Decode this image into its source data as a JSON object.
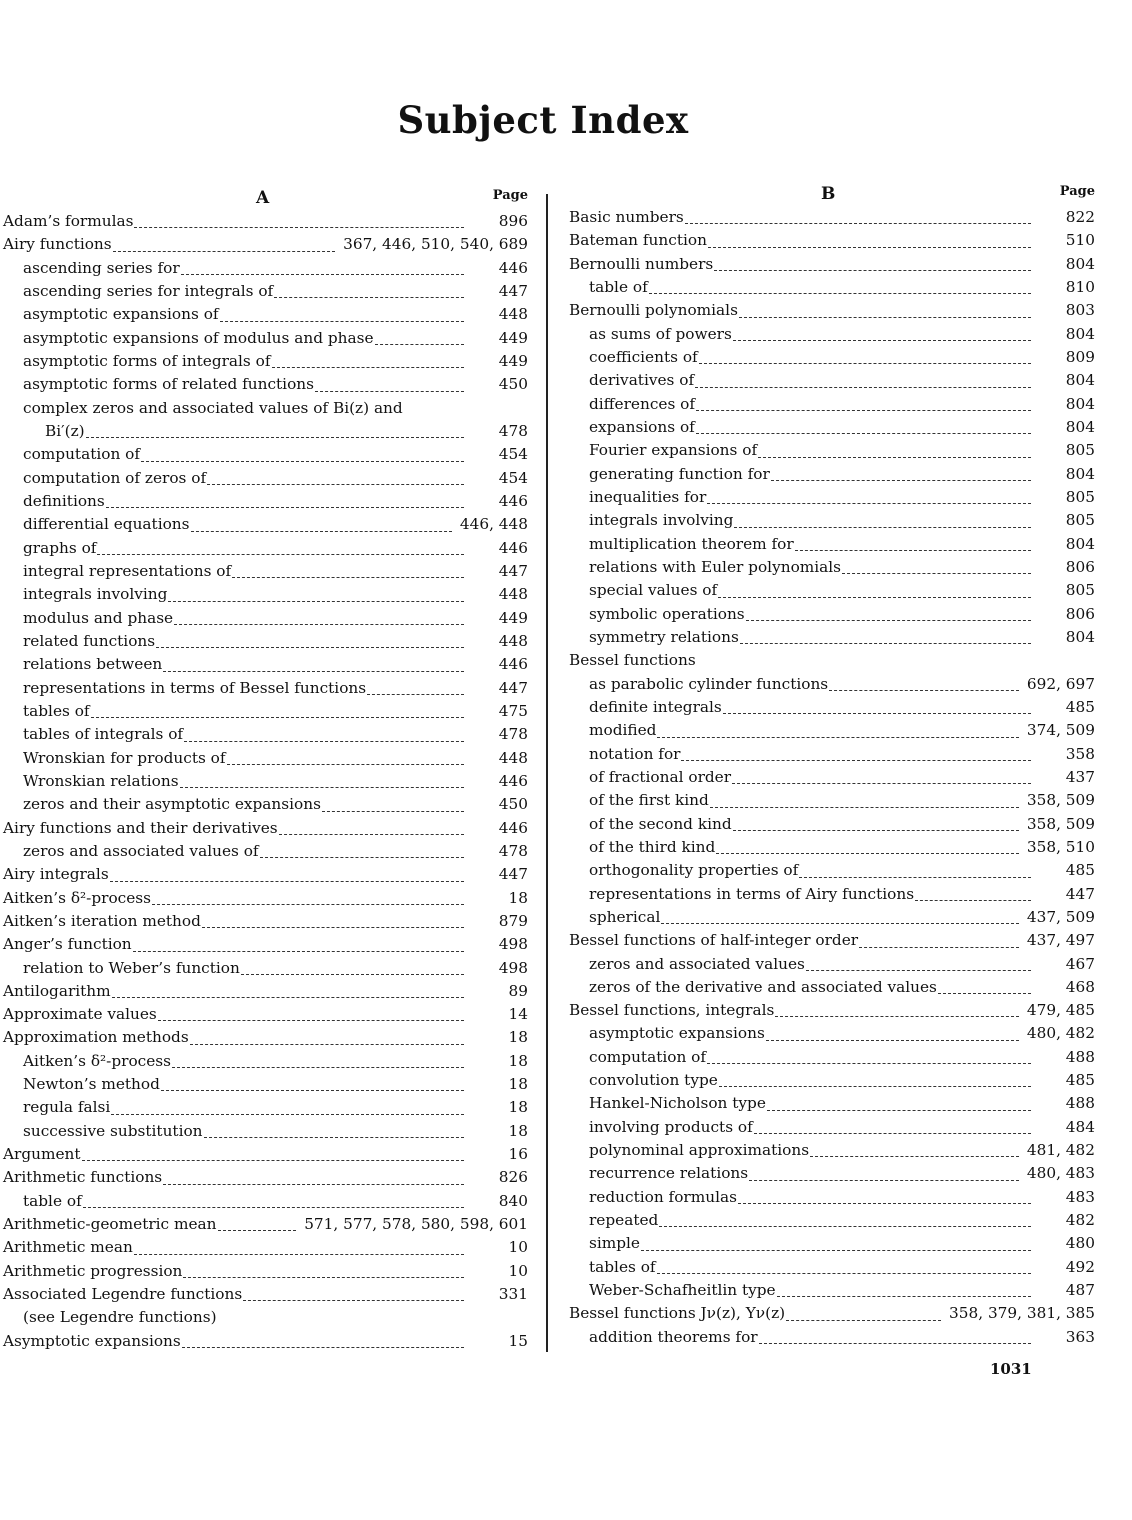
{
  "title": "Subject Index",
  "page_number": "1031",
  "columns": [
    {
      "letter": "A",
      "page_header": "Page",
      "entries": [
        {
          "text": "Adam’s formulas",
          "pages": "896",
          "level": 0
        },
        {
          "text": "Airy functions",
          "pages": "367, 446, 510, 540, 689",
          "level": 0
        },
        {
          "text": "ascending series for",
          "pages": "446",
          "level": 1
        },
        {
          "text": "ascending series for integrals of",
          "pages": "447",
          "level": 1
        },
        {
          "text": "asymptotic expansions of",
          "pages": "448",
          "level": 1
        },
        {
          "text": "asymptotic expansions of modulus and phase",
          "pages": "449",
          "level": 1
        },
        {
          "text": "asymptotic forms of integrals of",
          "pages": "449",
          "level": 1
        },
        {
          "text": "asymptotic forms of related functions",
          "pages": "450",
          "level": 1
        },
        {
          "text": "complex zeros and associated values of Bi(z) and",
          "pages": "",
          "level": 1
        },
        {
          "text": "Bi′(z)",
          "pages": "478",
          "level": 2
        },
        {
          "text": "computation of",
          "pages": "454",
          "level": 1
        },
        {
          "text": "computation of zeros of",
          "pages": "454",
          "level": 1
        },
        {
          "text": "definitions",
          "pages": "446",
          "level": 1
        },
        {
          "text": "differential equations",
          "pages": "446, 448",
          "level": 1
        },
        {
          "text": "graphs of",
          "pages": "446",
          "level": 1
        },
        {
          "text": "integral representations of",
          "pages": "447",
          "level": 1
        },
        {
          "text": "integrals involving",
          "pages": "448",
          "level": 1
        },
        {
          "text": "modulus and phase",
          "pages": "449",
          "level": 1
        },
        {
          "text": "related functions",
          "pages": "448",
          "level": 1
        },
        {
          "text": "relations between",
          "pages": "446",
          "level": 1
        },
        {
          "text": "representations in terms of Bessel functions",
          "pages": "447",
          "level": 1
        },
        {
          "text": "tables of",
          "pages": "475",
          "level": 1
        },
        {
          "text": "tables of integrals of",
          "pages": "478",
          "level": 1
        },
        {
          "text": "Wronskian for products of",
          "pages": "448",
          "level": 1
        },
        {
          "text": "Wronskian relations",
          "pages": "446",
          "level": 1
        },
        {
          "text": "zeros and their asymptotic expansions",
          "pages": "450",
          "level": 1
        },
        {
          "text": "Airy functions and their derivatives",
          "pages": "446",
          "level": 0
        },
        {
          "text": "zeros and associated values of",
          "pages": "478",
          "level": 1
        },
        {
          "text": "Airy integrals",
          "pages": "447",
          "level": 0
        },
        {
          "text": "Aitken’s δ²-process",
          "pages": "18",
          "level": 0
        },
        {
          "text": "Aitken’s iteration method",
          "pages": "879",
          "level": 0
        },
        {
          "text": "Anger’s function",
          "pages": "498",
          "level": 0
        },
        {
          "text": "relation to Weber’s function",
          "pages": "498",
          "level": 1
        },
        {
          "text": "Antilogarithm",
          "pages": "89",
          "level": 0
        },
        {
          "text": "Approximate values",
          "pages": "14",
          "level": 0
        },
        {
          "text": "Approximation methods",
          "pages": "18",
          "level": 0
        },
        {
          "text": "Aitken’s δ²-process",
          "pages": "18",
          "level": 1
        },
        {
          "text": "Newton’s method",
          "pages": "18",
          "level": 1
        },
        {
          "text": "regula falsi",
          "pages": "18",
          "level": 1
        },
        {
          "text": "successive substitution",
          "pages": "18",
          "level": 1
        },
        {
          "text": "Argument",
          "pages": "16",
          "level": 0
        },
        {
          "text": "Arithmetic functions",
          "pages": "826",
          "level": 0
        },
        {
          "text": "table of",
          "pages": "840",
          "level": 1
        },
        {
          "text": "Arithmetic-geometric mean",
          "pages": "571, 577, 578, 580, 598, 601",
          "level": 0
        },
        {
          "text": "Arithmetic mean",
          "pages": "10",
          "level": 0
        },
        {
          "text": "Arithmetic progression",
          "pages": "10",
          "level": 0
        },
        {
          "text": "Associated Legendre functions",
          "pages": "331",
          "level": 0
        },
        {
          "text": "(see Legendre functions)",
          "pages": "",
          "level": 1
        },
        {
          "text": "Asymptotic expansions",
          "pages": "15",
          "level": 0
        }
      ]
    },
    {
      "letter": "B",
      "page_header": "Page",
      "entries": [
        {
          "text": "Basic numbers",
          "pages": "822",
          "level": 0
        },
        {
          "text": "Bateman function",
          "pages": "510",
          "level": 0
        },
        {
          "text": "Bernoulli numbers",
          "pages": "804",
          "level": 0
        },
        {
          "text": "table of",
          "pages": "810",
          "level": 1
        },
        {
          "text": "Bernoulli polynomials",
          "pages": "803",
          "level": 0
        },
        {
          "text": "as sums of powers",
          "pages": "804",
          "level": 1
        },
        {
          "text": "coefficients of",
          "pages": "809",
          "level": 1
        },
        {
          "text": "derivatives of",
          "pages": "804",
          "level": 1
        },
        {
          "text": "differences of",
          "pages": "804",
          "level": 1
        },
        {
          "text": "expansions of",
          "pages": "804",
          "level": 1
        },
        {
          "text": "Fourier expansions of",
          "pages": "805",
          "level": 1
        },
        {
          "text": "generating function for",
          "pages": "804",
          "level": 1
        },
        {
          "text": "inequalities for",
          "pages": "805",
          "level": 1
        },
        {
          "text": "integrals involving",
          "pages": "805",
          "level": 1
        },
        {
          "text": "multiplication theorem for",
          "pages": "804",
          "level": 1
        },
        {
          "text": "relations with Euler polynomials",
          "pages": "806",
          "level": 1
        },
        {
          "text": "special values of",
          "pages": "805",
          "level": 1
        },
        {
          "text": "symbolic operations",
          "pages": "806",
          "level": 1
        },
        {
          "text": "symmetry relations",
          "pages": "804",
          "level": 1
        },
        {
          "text": "Bessel functions",
          "pages": "",
          "level": 0
        },
        {
          "text": "as parabolic cylinder functions",
          "pages": "692, 697",
          "level": 1
        },
        {
          "text": "definite integrals",
          "pages": "485",
          "level": 1
        },
        {
          "text": "modified",
          "pages": "374, 509",
          "level": 1
        },
        {
          "text": "notation for",
          "pages": "358",
          "level": 1
        },
        {
          "text": "of fractional order",
          "pages": "437",
          "level": 1
        },
        {
          "text": "of the first kind",
          "pages": "358, 509",
          "level": 1
        },
        {
          "text": "of the second kind",
          "pages": "358, 509",
          "level": 1
        },
        {
          "text": "of the third kind",
          "pages": "358, 510",
          "level": 1
        },
        {
          "text": "orthogonality properties of",
          "pages": "485",
          "level": 1
        },
        {
          "text": "representations in terms of Airy functions",
          "pages": "447",
          "level": 1
        },
        {
          "text": "spherical",
          "pages": "437, 509",
          "level": 1
        },
        {
          "text": "Bessel functions of half-integer order",
          "pages": "437, 497",
          "level": 0
        },
        {
          "text": "zeros and associated values",
          "pages": "467",
          "level": 1
        },
        {
          "text": "zeros of the derivative and associated values",
          "pages": "468",
          "level": 1
        },
        {
          "text": "Bessel functions, integrals",
          "pages": "479, 485",
          "level": 0
        },
        {
          "text": "asymptotic expansions",
          "pages": "480, 482",
          "level": 1
        },
        {
          "text": "computation of",
          "pages": "488",
          "level": 1
        },
        {
          "text": "convolution type",
          "pages": "485",
          "level": 1
        },
        {
          "text": "Hankel-Nicholson type",
          "pages": "488",
          "level": 1
        },
        {
          "text": "involving products of",
          "pages": "484",
          "level": 1
        },
        {
          "text": "polynominal approximations",
          "pages": "481, 482",
          "level": 1
        },
        {
          "text": "recurrence relations",
          "pages": "480, 483",
          "level": 1
        },
        {
          "text": "reduction formulas",
          "pages": "483",
          "level": 1
        },
        {
          "text": "repeated",
          "pages": "482",
          "level": 1
        },
        {
          "text": "simple",
          "pages": "480",
          "level": 1
        },
        {
          "text": "tables of",
          "pages": "492",
          "level": 1
        },
        {
          "text": "Weber-Schafheitlin type",
          "pages": "487",
          "level": 1
        },
        {
          "text": "Bessel functions Jν(z), Yν(z)",
          "pages": "358, 379, 381, 385",
          "level": 0
        },
        {
          "text": "addition theorems for",
          "pages": "363",
          "level": 1
        }
      ]
    }
  ]
}
